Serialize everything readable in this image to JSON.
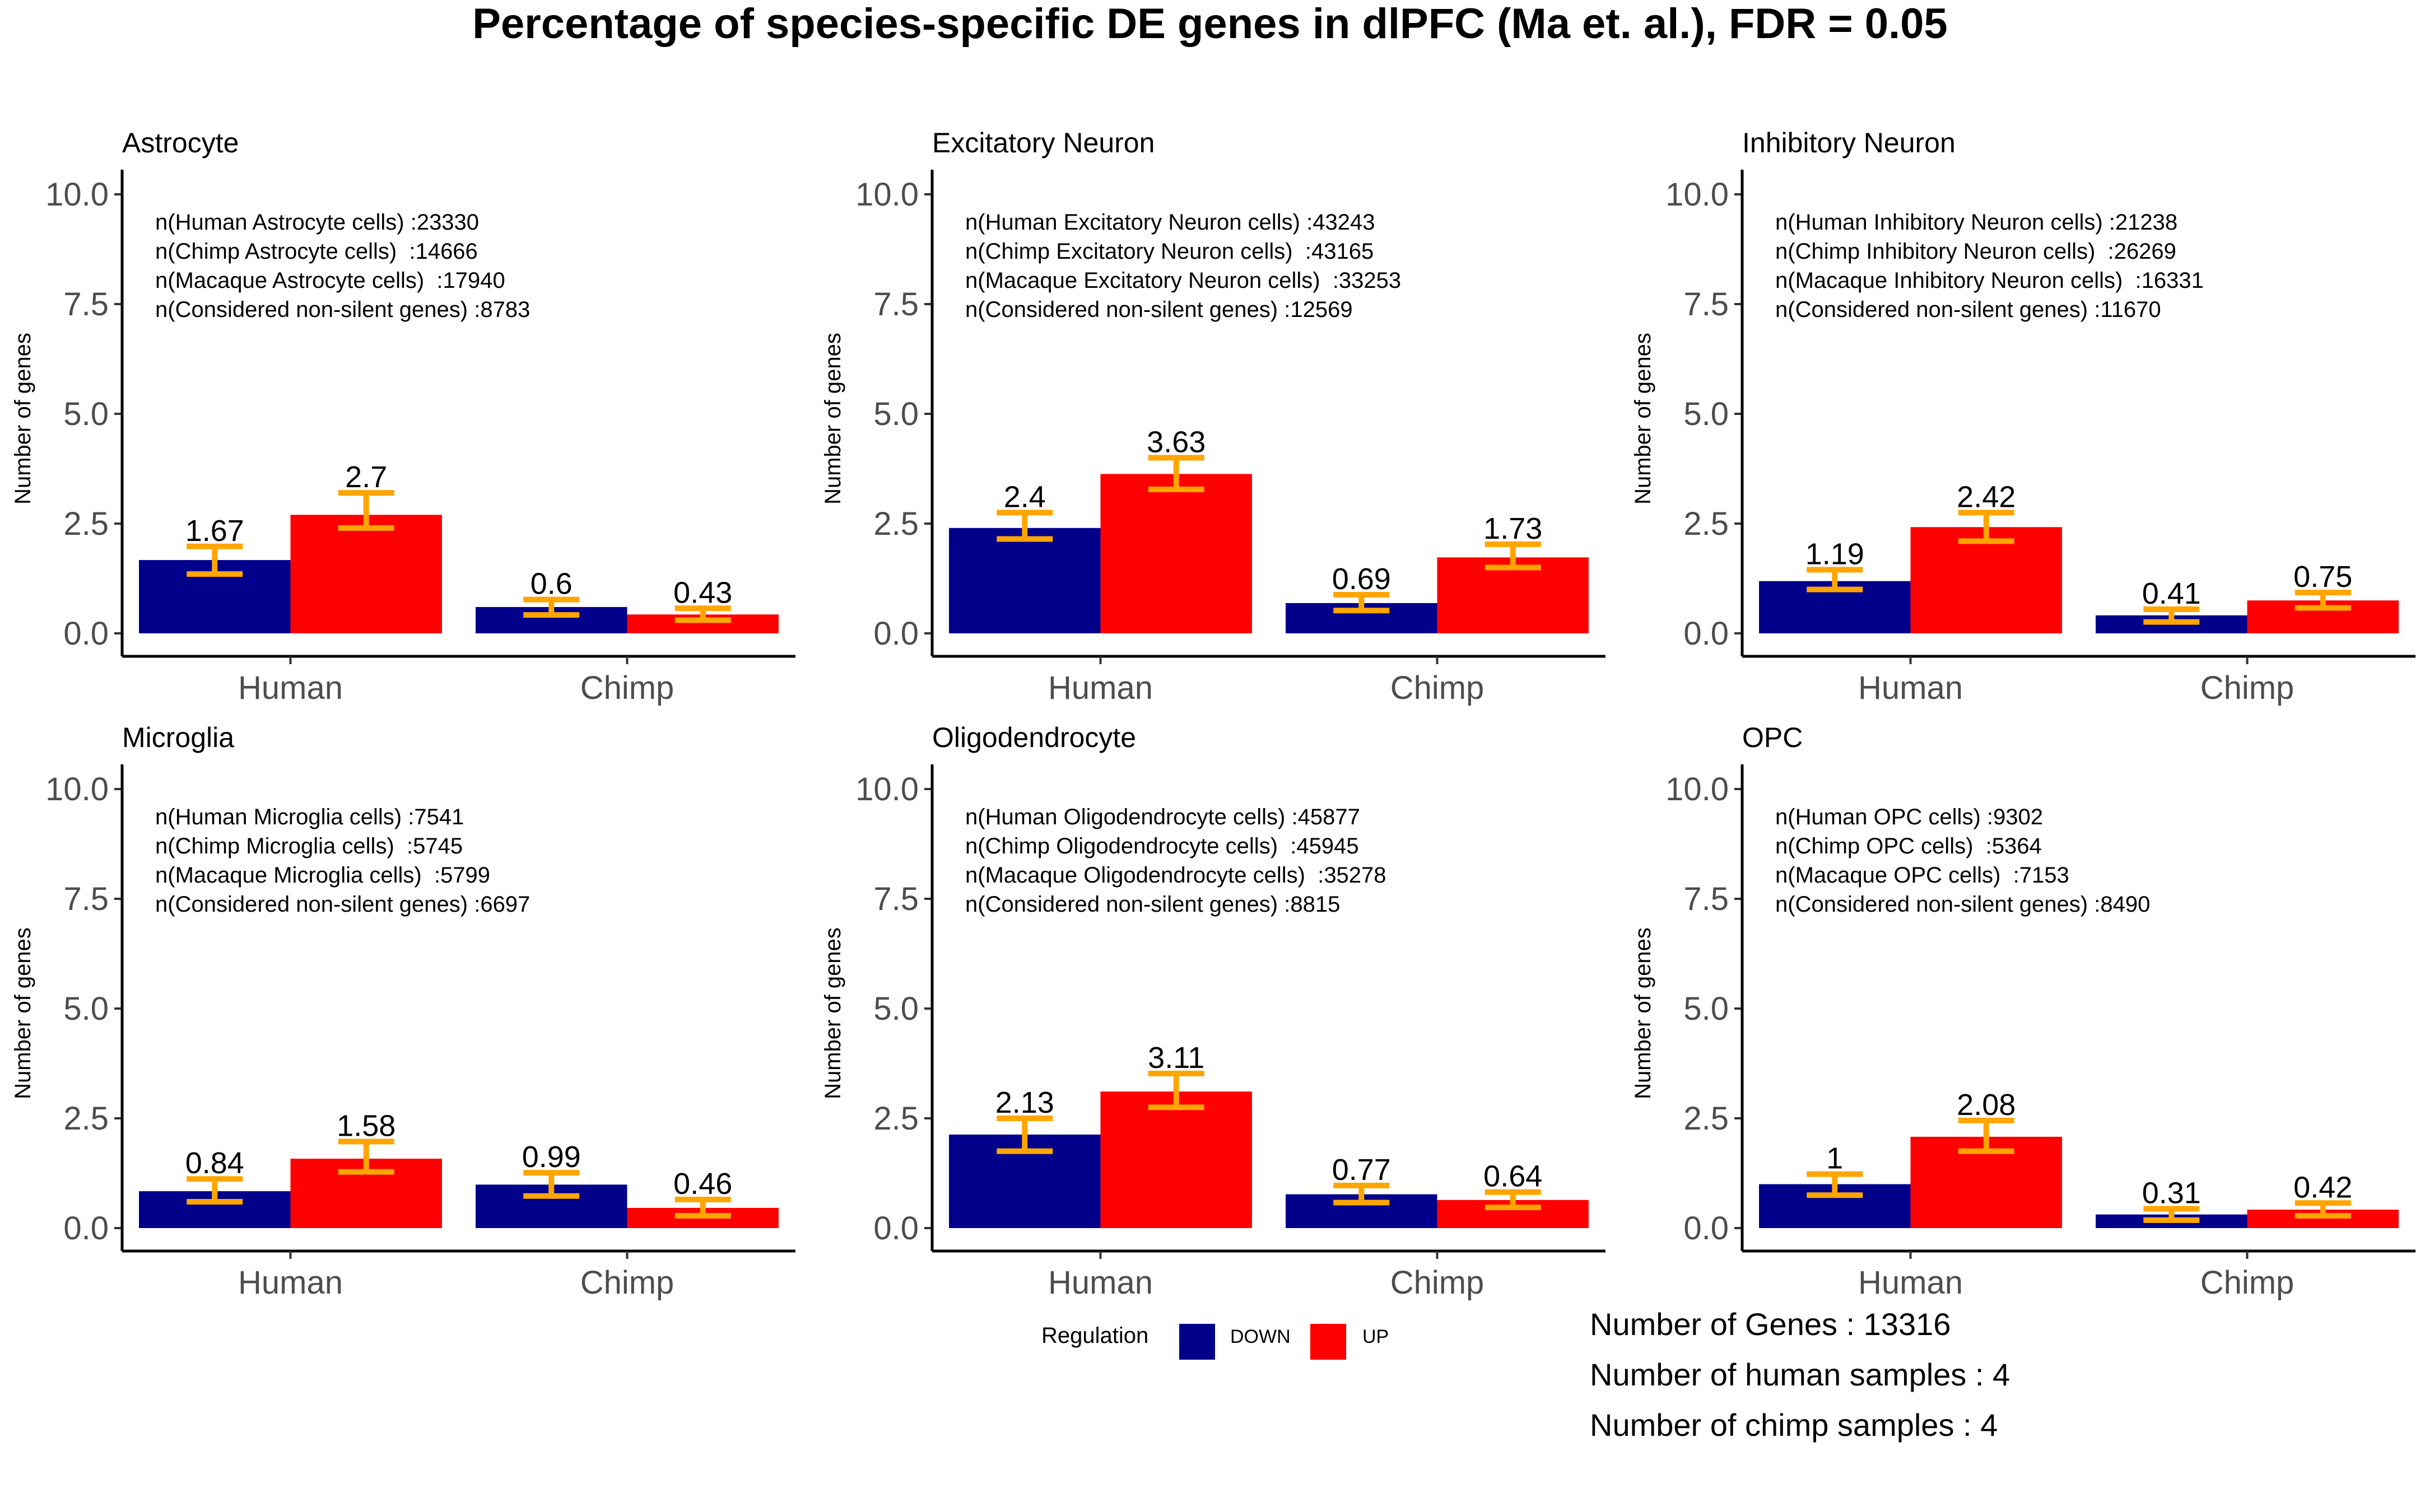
{
  "title": "Percentage of species-specific DE genes in dlPFC (Ma et. al.), FDR = 0.05",
  "legend": {
    "title": "Regulation",
    "items": [
      {
        "label": "DOWN",
        "color": "#00008B"
      },
      {
        "label": "UP",
        "color": "#FF0000"
      }
    ]
  },
  "footer": [
    "Number of Genes : 13316",
    "Number of human samples : 4",
    "Number of chimp samples : 4"
  ],
  "colors": {
    "down": "#00008B",
    "up": "#FF0000",
    "error_bar": "#FFA500"
  },
  "chart_data": [
    {
      "type": "bar",
      "title": "Astrocyte",
      "ylabel": "Number of genes",
      "ylim": [
        0,
        10
      ],
      "yticks": [
        "0.0",
        "2.5",
        "5.0",
        "7.5",
        "10.0"
      ],
      "categories": [
        "Human",
        "Chimp"
      ],
      "series": [
        {
          "name": "DOWN",
          "values": [
            1.67,
            0.6
          ],
          "labels": [
            "1.67",
            "0.6"
          ],
          "err_low": [
            1.35,
            0.42
          ],
          "err_high": [
            1.98,
            0.77
          ]
        },
        {
          "name": "UP",
          "values": [
            2.7,
            0.43
          ],
          "labels": [
            "2.7",
            "0.43"
          ],
          "err_low": [
            2.4,
            0.3
          ],
          "err_high": [
            3.2,
            0.57
          ]
        }
      ],
      "annotations": [
        "n(Human Astrocyte cells) :23330",
        "n(Chimp Astrocyte cells)  :14666",
        "n(Macaque Astrocyte cells)  :17940",
        "n(Considered non-silent genes) :8783"
      ]
    },
    {
      "type": "bar",
      "title": "Excitatory Neuron",
      "ylabel": "Number of genes",
      "ylim": [
        0,
        10
      ],
      "yticks": [
        "0.0",
        "2.5",
        "5.0",
        "7.5",
        "10.0"
      ],
      "categories": [
        "Human",
        "Chimp"
      ],
      "series": [
        {
          "name": "DOWN",
          "values": [
            2.4,
            0.69
          ],
          "labels": [
            "2.4",
            "0.69"
          ],
          "err_low": [
            2.15,
            0.52
          ],
          "err_high": [
            2.75,
            0.88
          ]
        },
        {
          "name": "UP",
          "values": [
            3.63,
            1.73
          ],
          "labels": [
            "3.63",
            "1.73"
          ],
          "err_low": [
            3.28,
            1.5
          ],
          "err_high": [
            4.0,
            2.03
          ]
        }
      ],
      "annotations": [
        "n(Human Excitatory Neuron cells) :43243",
        "n(Chimp Excitatory Neuron cells)  :43165",
        "n(Macaque Excitatory Neuron cells)  :33253",
        "n(Considered non-silent genes) :12569"
      ]
    },
    {
      "type": "bar",
      "title": "Inhibitory Neuron",
      "ylabel": "Number of genes",
      "ylim": [
        0,
        10
      ],
      "yticks": [
        "0.0",
        "2.5",
        "5.0",
        "7.5",
        "10.0"
      ],
      "categories": [
        "Human",
        "Chimp"
      ],
      "series": [
        {
          "name": "DOWN",
          "values": [
            1.19,
            0.41
          ],
          "labels": [
            "1.19",
            "0.41"
          ],
          "err_low": [
            1.0,
            0.26
          ],
          "err_high": [
            1.45,
            0.55
          ]
        },
        {
          "name": "UP",
          "values": [
            2.42,
            0.75
          ],
          "labels": [
            "2.42",
            "0.75"
          ],
          "err_low": [
            2.1,
            0.58
          ],
          "err_high": [
            2.75,
            0.93
          ]
        }
      ],
      "annotations": [
        "n(Human Inhibitory Neuron cells) :21238",
        "n(Chimp Inhibitory Neuron cells)  :26269",
        "n(Macaque Inhibitory Neuron cells)  :16331",
        "n(Considered non-silent genes) :11670"
      ]
    },
    {
      "type": "bar",
      "title": "Microglia",
      "ylabel": "Number of genes",
      "ylim": [
        0,
        10
      ],
      "yticks": [
        "0.0",
        "2.5",
        "5.0",
        "7.5",
        "10.0"
      ],
      "categories": [
        "Human",
        "Chimp"
      ],
      "series": [
        {
          "name": "DOWN",
          "values": [
            0.84,
            0.99
          ],
          "labels": [
            "0.84",
            "0.99"
          ],
          "err_low": [
            0.6,
            0.73
          ],
          "err_high": [
            1.12,
            1.26
          ]
        },
        {
          "name": "UP",
          "values": [
            1.58,
            0.46
          ],
          "labels": [
            "1.58",
            "0.46"
          ],
          "err_low": [
            1.28,
            0.28
          ],
          "err_high": [
            1.97,
            0.65
          ]
        }
      ],
      "annotations": [
        "n(Human Microglia cells) :7541",
        "n(Chimp Microglia cells)  :5745",
        "n(Macaque Microglia cells)  :5799",
        "n(Considered non-silent genes) :6697"
      ]
    },
    {
      "type": "bar",
      "title": "Oligodendrocyte",
      "ylabel": "Number of genes",
      "ylim": [
        0,
        10
      ],
      "yticks": [
        "0.0",
        "2.5",
        "5.0",
        "7.5",
        "10.0"
      ],
      "categories": [
        "Human",
        "Chimp"
      ],
      "series": [
        {
          "name": "DOWN",
          "values": [
            2.13,
            0.77
          ],
          "labels": [
            "2.13",
            "0.77"
          ],
          "err_low": [
            1.75,
            0.58
          ],
          "err_high": [
            2.5,
            0.97
          ]
        },
        {
          "name": "UP",
          "values": [
            3.11,
            0.64
          ],
          "labels": [
            "3.11",
            "0.64"
          ],
          "err_low": [
            2.75,
            0.47
          ],
          "err_high": [
            3.52,
            0.82
          ]
        }
      ],
      "annotations": [
        "n(Human Oligodendrocyte cells) :45877",
        "n(Chimp Oligodendrocyte cells)  :45945",
        "n(Macaque Oligodendrocyte cells)  :35278",
        "n(Considered non-silent genes) :8815"
      ]
    },
    {
      "type": "bar",
      "title": "OPC",
      "ylabel": "Number of genes",
      "ylim": [
        0,
        10
      ],
      "yticks": [
        "0.0",
        "2.5",
        "5.0",
        "7.5",
        "10.0"
      ],
      "categories": [
        "Human",
        "Chimp"
      ],
      "series": [
        {
          "name": "DOWN",
          "values": [
            1.0,
            0.31
          ],
          "labels": [
            "1",
            "0.31"
          ],
          "err_low": [
            0.75,
            0.18
          ],
          "err_high": [
            1.23,
            0.44
          ]
        },
        {
          "name": "UP",
          "values": [
            2.08,
            0.42
          ],
          "labels": [
            "2.08",
            "0.42"
          ],
          "err_low": [
            1.75,
            0.28
          ],
          "err_high": [
            2.45,
            0.57
          ]
        }
      ],
      "annotations": [
        "n(Human OPC cells) :9302",
        "n(Chimp OPC cells)  :5364",
        "n(Macaque OPC cells)  :7153",
        "n(Considered non-silent genes) :8490"
      ]
    }
  ]
}
